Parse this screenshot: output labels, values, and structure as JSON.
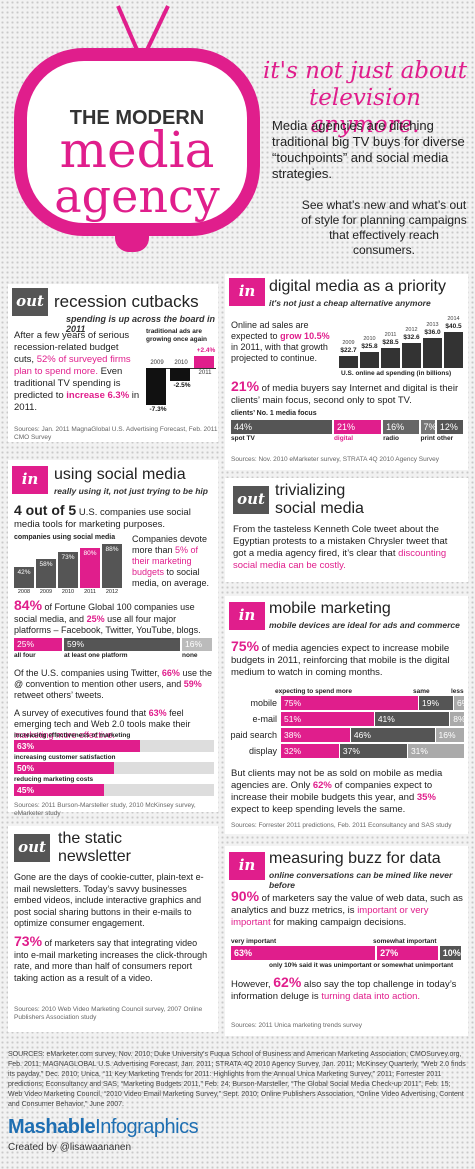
{
  "header": {
    "title_line1": "THE MODERN",
    "title_line2": "media",
    "title_line3": "agency",
    "hook_line1": "it's not just about",
    "hook_line2": "television anymore.",
    "intro1": "Media agencies are ditching traditional big TV buys for diverse “touchpoints” and social media strategies.",
    "intro2": "See what’s new and what’s out of style for planning campaigns that effectively reach consumers."
  },
  "tags": {
    "out": "out",
    "in": "in"
  },
  "recession": {
    "title": "recession cutbacks",
    "subtitle": "spending is up across the board in 2011",
    "text_a": "After a few years of serious recession-related budget cuts,",
    "text_b": "52% of surveyed firms plan to spend more.",
    "text_c": "Even traditional TV spending is predicted to",
    "text_d": "increase 6.3%",
    "text_e": "in 2011.",
    "chart_label": "traditional ads are growing once again",
    "source": "Sources: Jan. 2011 MagnaGlobal U.S. Advertising Forecast, Feb. 2011 CMO Survey"
  },
  "digital": {
    "title": "digital media as a priority",
    "subtitle": "it's not just a cheap alternative anymore",
    "text_a": "Online ad sales are expected to",
    "text_b": "grow 10.5%",
    "text_c": "in 2011, with that growth projected to continue.",
    "chart_label": "U.S. online ad spending (in billions)",
    "stat": "21%",
    "stat_text": "of media buyers say Internet and digital is their clients’ main focus, second only to spot TV.",
    "focus_label": "clients’ No. 1 media focus",
    "source": "Sources: Nov. 2010 eMarketer survey, STRATA 4Q 2010 Agency Survey"
  },
  "social": {
    "title": "using social media",
    "subtitle": "really using it, not just trying to be hip",
    "stat": "4 out of 5",
    "stat_text": "U.S. companies use social media tools for marketing purposes.",
    "chart_label": "companies using social media",
    "devote_a": "Companies devote more than",
    "devote_b": "5% of their marketing budgets",
    "devote_c": "to social media, on average.",
    "fortune_stat": "84%",
    "fortune_a": "of Fortune Global 100 companies use social media, and",
    "fortune_b": "25%",
    "fortune_c": "use all four major platforms – Facebook, Twitter, YouTube, blogs.",
    "twitter_a": "Of the U.S. companies using Twitter,",
    "twitter_b": "66%",
    "twitter_c": "use the @ convention to mention other users, and",
    "twitter_d": "59%",
    "twitter_e": "retweet others’ tweets.",
    "survey_a": "A survey of executives found that",
    "survey_b": "63%",
    "survey_c": "feel emerging tech and Web 2.0 tools make their",
    "survey_d": "marketing more effective.",
    "source": "Sources: 2011 Burson-Marsteller study, 2010 McKinsey survey, eMarketer study"
  },
  "trivial": {
    "title_line1": "trivializing",
    "title_line2": "social media",
    "text_a": "From the tasteless Kenneth Cole tweet about the Egyptian protests to a mistaken Chrysler tweet that got a media agency fired, it’s clear that",
    "text_b": "discounting social media can be costly."
  },
  "mobile": {
    "title": "mobile marketing",
    "subtitle": "mobile devices are ideal for ads and commerce",
    "stat": "75%",
    "stat_text": "of media agencies expect to increase mobile budgets in 2011, reinforcing that mobile is the digital medium to watch in coming months.",
    "col_more": "expecting to spend more",
    "col_same": "same",
    "col_less": "less",
    "clients_a": "But clients may not be as sold on mobile as media agencies are. Only",
    "clients_b": "62%",
    "clients_c": "of companies expect to increase their mobile budgets this year, and",
    "clients_d": "35%",
    "clients_e": "expect to keep spending levels the same.",
    "source": "Sources: Forrester 2011 predictions, Feb. 2011 Econsultancy and SAS study"
  },
  "newsletter": {
    "title_line1": "the static",
    "title_line2": "newsletter",
    "text": "Gone are the days of cookie-cutter, plain-text e-mail newsletters. Today’s savvy businesses embed videos, include interactive graphics and post social sharing buttons in their e-mails to optimize consumer engagement.",
    "stat": "73%",
    "stat_text": "of marketers say that integrating video into e-mail marketing increases the click-through rate, and more than half of consumers report taking action as a result of a video.",
    "source": "Sources: 2010 Web Video Marketing Council survey, 2007 Online Publishers Association study"
  },
  "buzz": {
    "title": "measuring buzz for data",
    "subtitle": "online conversations can be mined like never before",
    "stat": "90%",
    "stat_a": "of marketers say the value of web data, such as analytics and buzz metrics, is",
    "stat_b": "important or very important",
    "stat_c": "for making campaign decisions.",
    "lbl_very": "very important",
    "lbl_somewhat": "somewhat important",
    "lbl_only": "only 10% said it was unimportant or somewhat unimportant",
    "however_a": "However,",
    "however_b": "62%",
    "however_c": "also say the top challenge in today’s information deluge is",
    "however_d": "turning data into action.",
    "source": "Sources: 2011 Unica marketing trends survey"
  },
  "footer": {
    "sources": "SOURCES: eMarketer.com survey, Nov. 2010; Duke University’s Fuqua School of Business and American Marketing Association, CMOSurvey.org, Feb. 2011; MAGNAGLOBAL U.S. Advertising Forecast, Jan. 2011; STRATA 4Q 2010 Agency Survey, Jan. 2011; McKinsey Quarterly, “Web 2.0 finds its payday,” Dec. 2010; Unica, “11 Key Marketing Trends for 2011: Highlights from the Annual Unica Marketing Survey,” 2011; Forrester 2011 predictions; Econsultancy and SAS, “Marketing Budgets 2011,” Feb. 24; Burson-Marsteller, “The Global Social Media Check-up 2011”, Feb. 15; Web Video Marketing Council, “2010 Video Email Marketing Survey,” Sept. 2010; Online Publishers Association, “Online Video Advertising, Content and Consumer Behavior,” June 2007.",
    "brand_bold": "Mashable",
    "brand_light": "Infographics",
    "credit": "Created by @lisawaananen"
  },
  "colors": {
    "accent": "#e01e8c",
    "dark_gray": "#555555"
  },
  "chart_data": [
    {
      "type": "bar",
      "title": "traditional ads are growing once again",
      "categories": [
        "2009",
        "2010",
        "2011"
      ],
      "values": [
        -7.3,
        -2.5,
        2.4
      ],
      "labels": [
        "-7.3%",
        "-2.5%",
        "+2.4%"
      ]
    },
    {
      "type": "bar",
      "title": "U.S. online ad spending (in billions)",
      "categories": [
        "2009",
        "2010",
        "2011",
        "2012",
        "2013",
        "2014"
      ],
      "values": [
        22.7,
        25.8,
        28.5,
        32.6,
        36.0,
        40.5
      ],
      "labels": [
        "$22.7",
        "$25.8",
        "$28.5",
        "$32.6",
        "$36.0",
        "$40.5"
      ]
    },
    {
      "type": "bar",
      "title": "clients’ No. 1 media focus",
      "categories": [
        "spot TV",
        "digital",
        "radio",
        "print",
        "other"
      ],
      "values": [
        44,
        21,
        16,
        7,
        12
      ],
      "labels": [
        "44%",
        "21%",
        "16%",
        "7%",
        "12%"
      ]
    },
    {
      "type": "bar",
      "title": "companies using social media",
      "categories": [
        "2008",
        "2009",
        "2010",
        "2011",
        "2012"
      ],
      "values": [
        42,
        58,
        73,
        80,
        88
      ],
      "labels": [
        "42%",
        "58%",
        "73%",
        "80%",
        "88%"
      ]
    },
    {
      "type": "bar",
      "categories": [
        "all four",
        "at least one platform",
        "none"
      ],
      "values": [
        25,
        59,
        16
      ],
      "labels": [
        "25%",
        "59%",
        "16%"
      ]
    },
    {
      "type": "bar",
      "series": [
        {
          "name": "increasing effectiveness of marketing",
          "values": [
            63
          ],
          "label": "63%"
        },
        {
          "name": "increasing customer satisfaction",
          "values": [
            50
          ],
          "label": "50%"
        },
        {
          "name": "reducing marketing costs",
          "values": [
            45
          ],
          "label": "45%"
        }
      ]
    },
    {
      "type": "bar",
      "categories": [
        "mobile",
        "e-mail",
        "paid search",
        "display"
      ],
      "series": [
        {
          "name": "expecting to spend more",
          "values": [
            75,
            51,
            38,
            32
          ],
          "labels": [
            "75%",
            "51%",
            "38%",
            "32%"
          ]
        },
        {
          "name": "same",
          "values": [
            19,
            41,
            46,
            37
          ],
          "labels": [
            "19%",
            "41%",
            "46%",
            "37%"
          ]
        },
        {
          "name": "less",
          "values": [
            6,
            8,
            16,
            31
          ],
          "labels": [
            "6%",
            "8%",
            "16%",
            "31%"
          ]
        }
      ]
    },
    {
      "type": "bar",
      "categories": [
        "very important",
        "somewhat important",
        "unimportant or somewhat unimportant"
      ],
      "values": [
        63,
        27,
        10
      ],
      "labels": [
        "63%",
        "27%",
        "10%"
      ]
    }
  ]
}
